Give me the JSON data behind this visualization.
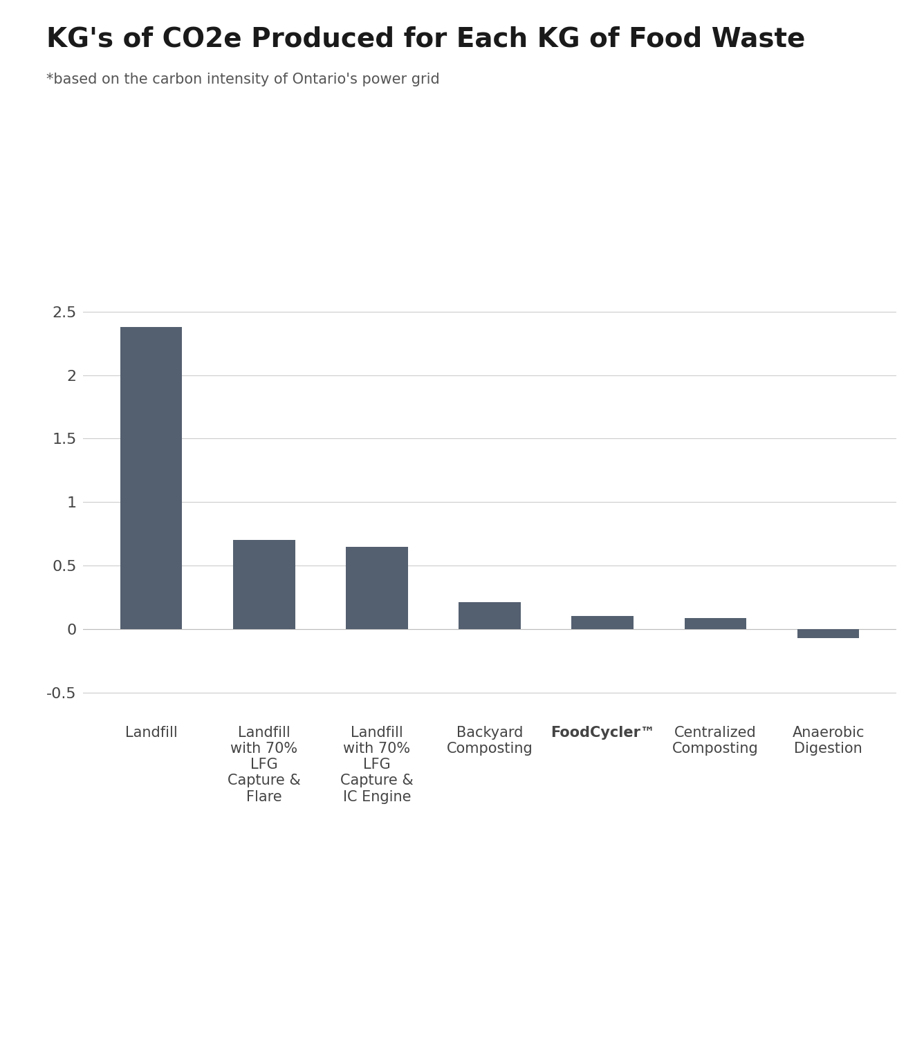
{
  "title": "KG's of CO2e Produced for Each KG of Food Waste",
  "subtitle": "*based on the carbon intensity of Ontario's power grid",
  "categories": [
    "Landfill",
    "Landfill\nwith 70%\nLFG\nCapture &\nFlare",
    "Landfill\nwith 70%\nLFG\nCapture &\nIC Engine",
    "Backyard\nComposting",
    "FoodCycler™",
    "Centralized\nComposting",
    "Anaerobic\nDigestion"
  ],
  "values": [
    2.38,
    0.7,
    0.65,
    0.21,
    0.105,
    0.085,
    -0.07
  ],
  "bar_color": "#546070",
  "background_color": "#ffffff",
  "ylim": [
    -0.6,
    2.75
  ],
  "yticks": [
    -0.5,
    0,
    0.5,
    1.0,
    1.5,
    2.0,
    2.5
  ],
  "title_fontsize": 28,
  "subtitle_fontsize": 15,
  "tick_fontsize": 16,
  "label_fontsize": 15,
  "foodcycler_bold_index": 4
}
